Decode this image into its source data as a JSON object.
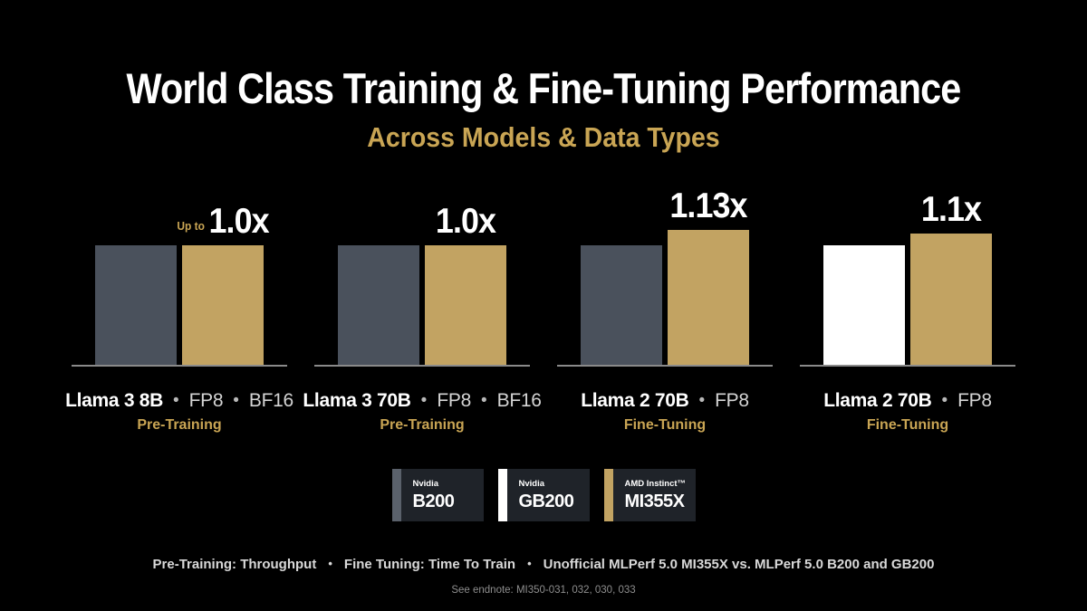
{
  "colors": {
    "background": "#000000",
    "title": "#FFFFFF",
    "accent_gold": "#C9A554",
    "bar_gray": "#4A515C",
    "bar_white": "#FFFFFF",
    "bar_gold": "#C2A362",
    "baseline": "#8A8A8A",
    "legend_box": "#1F2329",
    "footer_text": "#D9D9D9",
    "endnote_text": "#8E8E8E"
  },
  "header": {
    "title": "World Class Training & Fine-Tuning Performance",
    "subtitle": "Across Models & Data Types"
  },
  "chart_data": {
    "type": "bar",
    "unit": "relative performance (x, higher is better)",
    "bullet": "•",
    "bar_base_rel": 1.0,
    "series_colors": {
      "Nvidia B200": "#4A515C",
      "Nvidia GB200": "#FFFFFF",
      "AMD Instinct MI355X": "#C2A362"
    },
    "groups": [
      {
        "model": "Llama 3 8B",
        "datatypes": [
          "FP8",
          "BF16"
        ],
        "task": "Pre-Training",
        "value_prefix": "Up to",
        "value_label": "1.0x",
        "bars": [
          {
            "series": "Nvidia B200",
            "value": 1.0
          },
          {
            "series": "AMD Instinct MI355X",
            "value": 1.0
          }
        ]
      },
      {
        "model": "Llama 3 70B",
        "datatypes": [
          "FP8",
          "BF16"
        ],
        "task": "Pre-Training",
        "value_prefix": "",
        "value_label": "1.0x",
        "bars": [
          {
            "series": "Nvidia B200",
            "value": 1.0
          },
          {
            "series": "AMD Instinct MI355X",
            "value": 1.0
          }
        ]
      },
      {
        "model": "Llama 2 70B",
        "datatypes": [
          "FP8"
        ],
        "task": "Fine-Tuning",
        "value_prefix": "",
        "value_label": "1.13x",
        "bars": [
          {
            "series": "Nvidia B200",
            "value": 1.0
          },
          {
            "series": "AMD Instinct MI355X",
            "value": 1.13
          }
        ]
      },
      {
        "model": "Llama 2 70B",
        "datatypes": [
          "FP8"
        ],
        "task": "Fine-Tuning",
        "value_prefix": "",
        "value_label": "1.1x",
        "bars": [
          {
            "series": "Nvidia GB200",
            "value": 1.0
          },
          {
            "series": "AMD Instinct MI355X",
            "value": 1.1
          }
        ]
      }
    ]
  },
  "legend": {
    "items": [
      {
        "brand": "Nvidia",
        "model": "B200",
        "color": "#5A616B"
      },
      {
        "brand": "Nvidia",
        "model": "GB200",
        "color": "#FFFFFF"
      },
      {
        "brand": "AMD Instinct™",
        "model": "MI355X",
        "color": "#C2A362"
      }
    ]
  },
  "footer": {
    "segments": [
      "Pre-Training: Throughput",
      "Fine Tuning: Time To Train",
      "Unofficial MLPerf 5.0 MI355X vs. MLPerf 5.0  B200 and GB200"
    ],
    "separator": "•",
    "endnote": "See endnote: MI350-031, 032, 030, 033"
  }
}
